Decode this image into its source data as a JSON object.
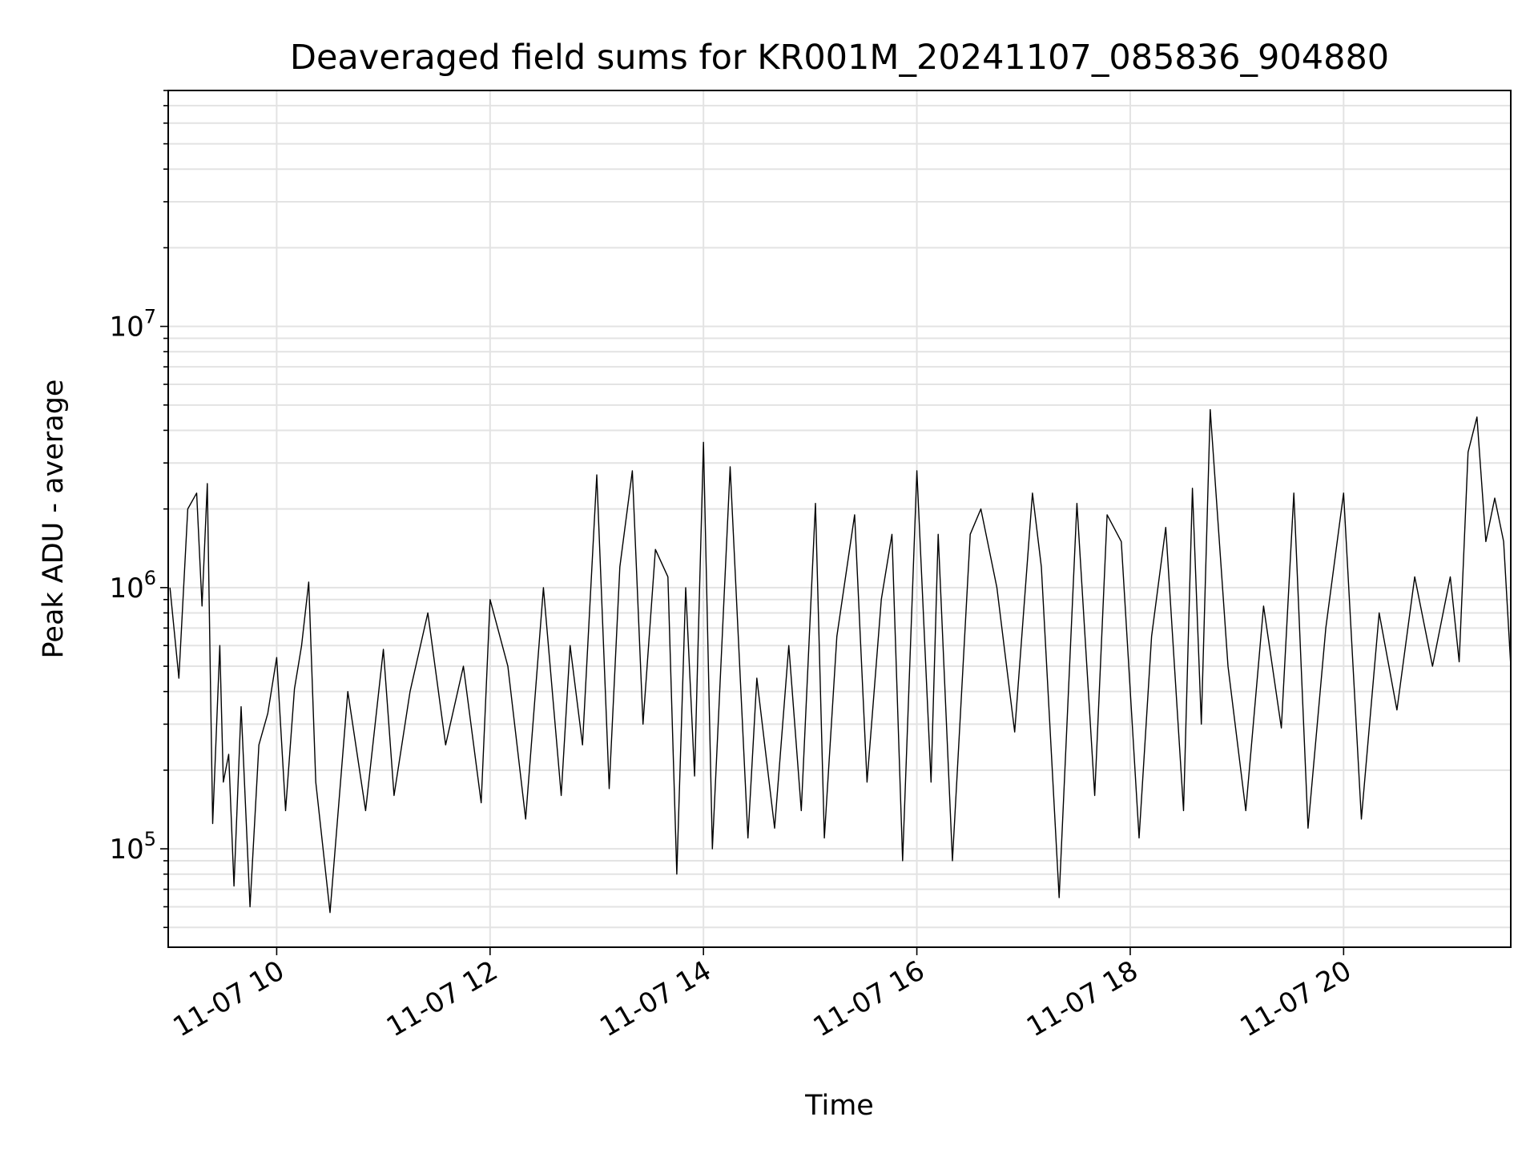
{
  "chart_data": {
    "type": "line",
    "title": "Deaveraged field sums for KR001M_20241107_085836_904880",
    "xlabel": "Time",
    "ylabel": "Peak ADU - average",
    "x_scale": "time",
    "y_scale": "log",
    "xlim": [
      "2024-11-07 08:59",
      "2024-11-07 21:34"
    ],
    "ylim": [
      42000,
      80000000
    ],
    "x_ticks": [
      "11-07 10",
      "11-07 12",
      "11-07 14",
      "11-07 16",
      "11-07 18",
      "11-07 20"
    ],
    "y_ticks": [
      {
        "base": "10",
        "exp": "5"
      },
      {
        "base": "10",
        "exp": "6"
      },
      {
        "base": "10",
        "exp": "7"
      }
    ],
    "grid": true,
    "line_color": "#000000",
    "series": [
      {
        "x": [
          "2024-11-07 09:00",
          "2024-11-07 09:05",
          "2024-11-07 09:10",
          "2024-11-07 09:15",
          "2024-11-07 09:18",
          "2024-11-07 09:21",
          "2024-11-07 09:24",
          "2024-11-07 09:28",
          "2024-11-07 09:30",
          "2024-11-07 09:33",
          "2024-11-07 09:36",
          "2024-11-07 09:40",
          "2024-11-07 09:45",
          "2024-11-07 09:50",
          "2024-11-07 09:55",
          "2024-11-07 10:00",
          "2024-11-07 10:05",
          "2024-11-07 10:10",
          "2024-11-07 10:14",
          "2024-11-07 10:18",
          "2024-11-07 10:22",
          "2024-11-07 10:30",
          "2024-11-07 10:40",
          "2024-11-07 10:50",
          "2024-11-07 11:00",
          "2024-11-07 11:06",
          "2024-11-07 11:15",
          "2024-11-07 11:25",
          "2024-11-07 11:35",
          "2024-11-07 11:45",
          "2024-11-07 11:55",
          "2024-11-07 12:00",
          "2024-11-07 12:10",
          "2024-11-07 12:20",
          "2024-11-07 12:30",
          "2024-11-07 12:40",
          "2024-11-07 12:45",
          "2024-11-07 12:52",
          "2024-11-07 13:00",
          "2024-11-07 13:07",
          "2024-11-07 13:13",
          "2024-11-07 13:20",
          "2024-11-07 13:26",
          "2024-11-07 13:33",
          "2024-11-07 13:40",
          "2024-11-07 13:45",
          "2024-11-07 13:50",
          "2024-11-07 13:55",
          "2024-11-07 14:00",
          "2024-11-07 14:05",
          "2024-11-07 14:15",
          "2024-11-07 14:25",
          "2024-11-07 14:30",
          "2024-11-07 14:40",
          "2024-11-07 14:48",
          "2024-11-07 14:55",
          "2024-11-07 15:03",
          "2024-11-07 15:08",
          "2024-11-07 15:15",
          "2024-11-07 15:25",
          "2024-11-07 15:32",
          "2024-11-07 15:40",
          "2024-11-07 15:46",
          "2024-11-07 15:52",
          "2024-11-07 16:00",
          "2024-11-07 16:08",
          "2024-11-07 16:12",
          "2024-11-07 16:20",
          "2024-11-07 16:30",
          "2024-11-07 16:36",
          "2024-11-07 16:45",
          "2024-11-07 16:55",
          "2024-11-07 17:05",
          "2024-11-07 17:10",
          "2024-11-07 17:20",
          "2024-11-07 17:30",
          "2024-11-07 17:40",
          "2024-11-07 17:47",
          "2024-11-07 17:55",
          "2024-11-07 18:05",
          "2024-11-07 18:12",
          "2024-11-07 18:20",
          "2024-11-07 18:30",
          "2024-11-07 18:35",
          "2024-11-07 18:40",
          "2024-11-07 18:45",
          "2024-11-07 18:55",
          "2024-11-07 19:05",
          "2024-11-07 19:15",
          "2024-11-07 19:25",
          "2024-11-07 19:32",
          "2024-11-07 19:40",
          "2024-11-07 19:50",
          "2024-11-07 20:00",
          "2024-11-07 20:10",
          "2024-11-07 20:20",
          "2024-11-07 20:30",
          "2024-11-07 20:40",
          "2024-11-07 20:50",
          "2024-11-07 21:00",
          "2024-11-07 21:05",
          "2024-11-07 21:10",
          "2024-11-07 21:15",
          "2024-11-07 21:20",
          "2024-11-07 21:25",
          "2024-11-07 21:30",
          "2024-11-07 21:34"
        ],
        "y": [
          1000000,
          450000,
          2000000,
          2300000,
          850000,
          2500000,
          125000,
          600000,
          180000,
          230000,
          72000,
          350000,
          60000,
          250000,
          330000,
          540000,
          140000,
          410000,
          600000,
          1050000,
          180000,
          57000,
          400000,
          140000,
          580000,
          160000,
          400000,
          800000,
          250000,
          500000,
          150000,
          900000,
          500000,
          130000,
          1000000,
          160000,
          600000,
          250000,
          2700000,
          170000,
          1200000,
          2800000,
          300000,
          1400000,
          1100000,
          80000,
          1000000,
          190000,
          3600000,
          100000,
          2900000,
          110000,
          450000,
          120000,
          600000,
          140000,
          2100000,
          110000,
          650000,
          1900000,
          180000,
          900000,
          1600000,
          90000,
          2800000,
          180000,
          1600000,
          90000,
          1600000,
          2000000,
          1000000,
          280000,
          2300000,
          1200000,
          65000,
          2100000,
          160000,
          1900000,
          1500000,
          110000,
          650000,
          1700000,
          140000,
          2400000,
          300000,
          4800000,
          500000,
          140000,
          850000,
          290000,
          2300000,
          120000,
          700000,
          2300000,
          130000,
          800000,
          340000,
          1100000,
          500000,
          1100000,
          520000,
          3300000,
          4500000,
          1500000,
          2200000,
          1500000,
          500000
        ]
      }
    ]
  }
}
